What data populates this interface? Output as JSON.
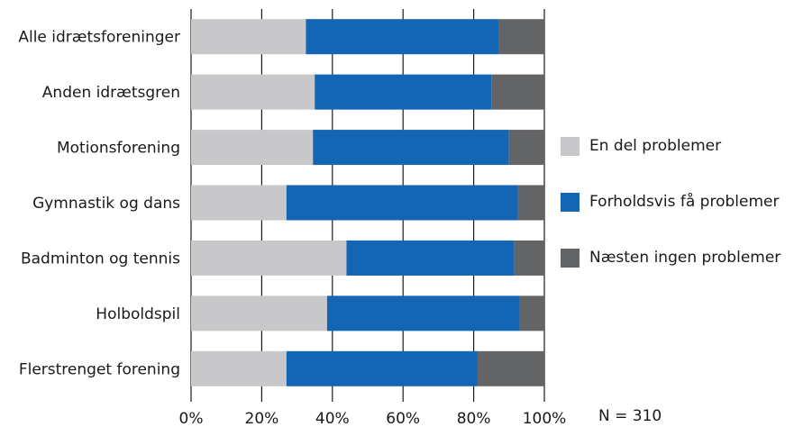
{
  "chart_data": {
    "type": "bar",
    "orientation": "horizontal",
    "stacked": true,
    "categories": [
      "Alle idrætsforeninger",
      "Anden idrætsgren",
      "Motionsforening",
      "Gymnastik og dans",
      "Badminton og tennis",
      "Holboldspil",
      "Flerstrenget forening"
    ],
    "series": [
      {
        "name": "En del problemer",
        "color": "#c8c8ca",
        "values": [
          32.5,
          35,
          34.5,
          27,
          44,
          38.5,
          27
        ]
      },
      {
        "name": "Forholdsvis få problemer",
        "color": "#1565b5",
        "values": [
          54.5,
          50,
          55.5,
          65.5,
          47.5,
          54.5,
          54
        ]
      },
      {
        "name": "Næsten ingen problemer",
        "color": "#636466",
        "values": [
          13,
          15,
          10,
          7.5,
          8.5,
          7,
          19
        ]
      }
    ],
    "x_ticks": [
      "0%",
      "20%",
      "40%",
      "60%",
      "80%",
      "100%"
    ],
    "xlim": [
      0,
      100
    ],
    "grid": "vertical",
    "legend_position": "right",
    "note": "N = 310"
  }
}
